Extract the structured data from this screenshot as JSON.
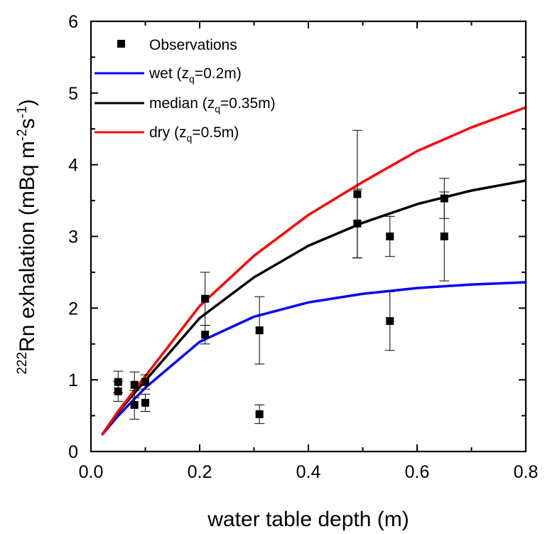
{
  "chart_data": {
    "type": "line",
    "xlabel": "water table depth (m)",
    "ylabel": {
      "sup_mass": "222",
      "main": "Rn exhalation (mBq m",
      "sup_m": "-2",
      "s": "s",
      "sup_s": "-1",
      "close": ")"
    },
    "xlim": [
      0.0,
      0.8
    ],
    "ylim": [
      0,
      6
    ],
    "x_ticks": [
      0.0,
      0.2,
      0.4,
      0.6,
      0.8
    ],
    "x_tick_labels": [
      "0.0",
      "0.2",
      "0.4",
      "0.6",
      "0.8"
    ],
    "y_ticks": [
      0,
      1,
      2,
      3,
      4,
      5,
      6
    ],
    "y_tick_labels": [
      "0",
      "1",
      "2",
      "3",
      "4",
      "5",
      "6"
    ],
    "grid": false,
    "legend_position": "top-left",
    "observations": {
      "label": "Observations",
      "points": [
        {
          "x": 0.05,
          "y": 0.97,
          "err": 0.15
        },
        {
          "x": 0.05,
          "y": 0.84,
          "err": 0.14
        },
        {
          "x": 0.08,
          "y": 0.93,
          "err": 0.18
        },
        {
          "x": 0.08,
          "y": 0.65,
          "err": 0.2
        },
        {
          "x": 0.1,
          "y": 0.97,
          "err": 0.1
        },
        {
          "x": 0.1,
          "y": 0.68,
          "err": 0.12
        },
        {
          "x": 0.21,
          "y": 2.13,
          "err": 0.37
        },
        {
          "x": 0.21,
          "y": 1.63,
          "err": 0.13
        },
        {
          "x": 0.31,
          "y": 1.69,
          "err": 0.47
        },
        {
          "x": 0.31,
          "y": 0.52,
          "err": 0.13
        },
        {
          "x": 0.49,
          "y": 3.59,
          "err": 0.89
        },
        {
          "x": 0.49,
          "y": 3.18,
          "err": 0.48
        },
        {
          "x": 0.55,
          "y": 3.0,
          "err": 0.28
        },
        {
          "x": 0.55,
          "y": 1.82,
          "err": 0.41
        },
        {
          "x": 0.65,
          "y": 3.53,
          "err": 0.28
        },
        {
          "x": 0.65,
          "y": 3.0,
          "err": 0.62
        }
      ]
    },
    "series": [
      {
        "name": "wet",
        "zq": "0.2m",
        "color": "#0000ff",
        "x": [
          0.02,
          0.05,
          0.1,
          0.2,
          0.3,
          0.4,
          0.5,
          0.6,
          0.7,
          0.8
        ],
        "y": [
          0.23,
          0.5,
          0.89,
          1.53,
          1.88,
          2.08,
          2.2,
          2.28,
          2.33,
          2.36
        ]
      },
      {
        "name": "median",
        "zq": "0.35m",
        "color": "#000000",
        "x": [
          0.02,
          0.05,
          0.1,
          0.2,
          0.3,
          0.4,
          0.5,
          0.6,
          0.7,
          0.8
        ],
        "y": [
          0.23,
          0.55,
          0.99,
          1.86,
          2.43,
          2.87,
          3.19,
          3.45,
          3.64,
          3.78
        ]
      },
      {
        "name": "dry",
        "zq": "0.5m",
        "color": "#ff0000",
        "x": [
          0.02,
          0.05,
          0.1,
          0.2,
          0.3,
          0.4,
          0.5,
          0.6,
          0.7,
          0.8
        ],
        "y": [
          0.23,
          0.56,
          1.05,
          2.03,
          2.73,
          3.3,
          3.76,
          4.19,
          4.52,
          4.8
        ]
      }
    ],
    "legend_z_symbol": "z",
    "legend_z_sub": "q"
  }
}
